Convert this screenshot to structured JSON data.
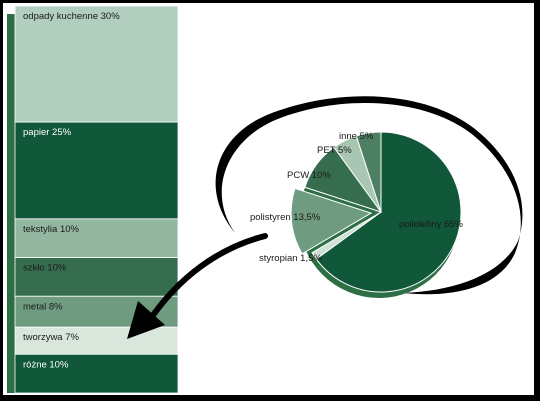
{
  "colors": {
    "dark_green": "#11573a",
    "shadow_green": "#2d6f45",
    "light_green": "#b2cebe",
    "mid_green": "#94b7a1",
    "pale_green": "#d9e6dc",
    "arrow": "#000000"
  },
  "chart_data": [
    {
      "type": "bar",
      "stacked": true,
      "orientation": "vertical",
      "series": [
        {
          "name": "odpady kuchenne",
          "label": "odpady kuchenne 30%",
          "value": 30,
          "color": "#b2cebe"
        },
        {
          "name": "papier",
          "label": "papier 25%",
          "value": 25,
          "color": "#11573a"
        },
        {
          "name": "tekstylia",
          "label": "tekstylia 10%",
          "value": 10,
          "color": "#94b7a1"
        },
        {
          "name": "szkło",
          "label": "szkło 10%",
          "value": 10,
          "color": "#356d4e"
        },
        {
          "name": "metal",
          "label": "metal 8%",
          "value": 8,
          "color": "#6f9c80"
        },
        {
          "name": "tworzywa",
          "label": "tworzywa 7%",
          "value": 7,
          "color": "#d9e6dc"
        },
        {
          "name": "różne",
          "label": "różne 10%",
          "value": 10,
          "color": "#11573a"
        }
      ]
    },
    {
      "type": "pie",
      "exploded_slice": "polistyren",
      "series": [
        {
          "name": "poliolefiny",
          "label": "poliolefiny 65%",
          "value": 65,
          "color": "#11573a"
        },
        {
          "name": "styropian",
          "label": "styropian 1,5%",
          "value": 1.5,
          "color": "#cfe0d4"
        },
        {
          "name": "polistyren",
          "label": "polistyren 13,5%",
          "value": 13.5,
          "color": "#6f9c80"
        },
        {
          "name": "PCW",
          "label": "PCW 10%",
          "value": 10,
          "color": "#356d4e"
        },
        {
          "name": "PET",
          "label": "PET 5%",
          "value": 5,
          "color": "#a9c6b2"
        },
        {
          "name": "inne",
          "label": "inne 5%",
          "value": 5,
          "color": "#4d8063"
        }
      ]
    }
  ]
}
